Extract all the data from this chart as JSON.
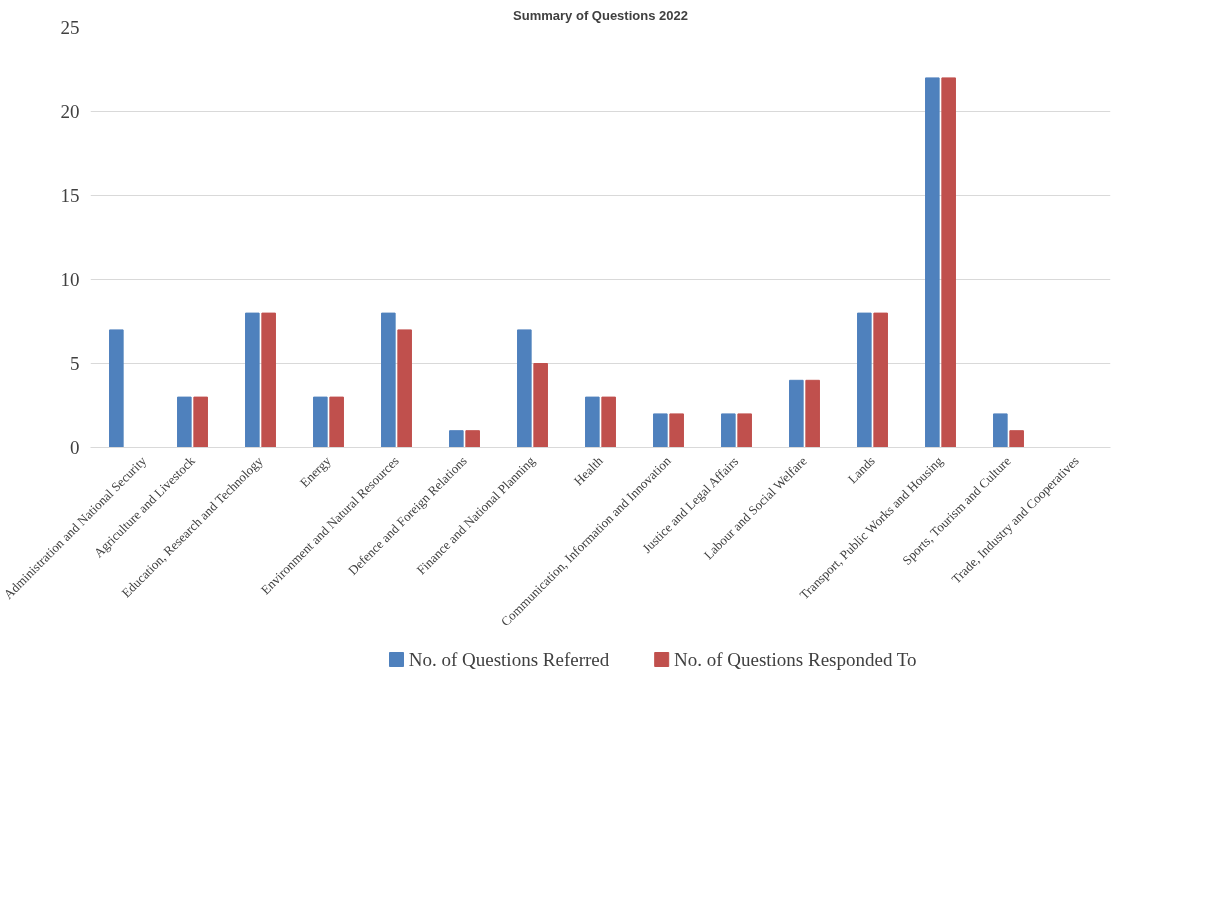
{
  "chart_data": {
    "type": "bar",
    "title": "Summary of Questions 2022",
    "categories": [
      "Administration and National Security",
      "Agriculture and Livestock",
      "Education, Research and Technology",
      "Energy",
      "Environment and Natural Resources",
      "Defence and Foreign Relations",
      "Finance and National Planning",
      "Health",
      "Communication, Information and Innovation",
      "Justice and Legal Affairs",
      "Labour and Social Welfare",
      "Lands",
      "Transport, Public Works and Housing",
      "Sports, Tourism and Culture",
      "Trade, Industry and Cooperatives"
    ],
    "series": [
      {
        "name": "No. of Questions Referred",
        "color": "#4f81bd",
        "values": [
          7,
          3,
          8,
          3,
          8,
          1,
          7,
          3,
          2,
          2,
          4,
          8,
          22,
          2,
          0
        ]
      },
      {
        "name": "No. of Questions Responded To",
        "color": "#c0504d",
        "values": [
          0,
          3,
          8,
          3,
          7,
          1,
          5,
          3,
          2,
          2,
          4,
          8,
          22,
          1,
          0
        ]
      }
    ],
    "ylim": [
      0,
      25
    ],
    "yticks": [
      0,
      5,
      10,
      15,
      20,
      25
    ],
    "grid": "y",
    "legend": "bottom"
  }
}
